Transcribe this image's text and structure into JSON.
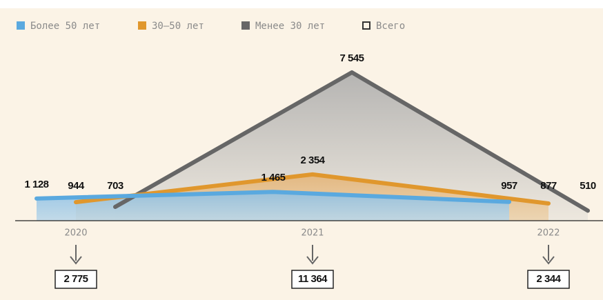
{
  "chart_data": {
    "type": "area",
    "categories": [
      "2020",
      "2021",
      "2022"
    ],
    "ylim": [
      0,
      8000
    ],
    "series": [
      {
        "name": "Более 50 лет",
        "color": "#5aa9df",
        "values": [
          1128,
          1465,
          957
        ],
        "value_labels": [
          "1 128",
          "1 465",
          "957"
        ]
      },
      {
        "name": "30–50 лет",
        "color": "#e0972d",
        "values": [
          944,
          2354,
          877
        ],
        "value_labels": [
          "944",
          "2 354",
          "877"
        ]
      },
      {
        "name": "Менее 30 лет",
        "color": "#666666",
        "values": [
          703,
          7545,
          510
        ],
        "value_labels": [
          "703",
          "7 545",
          "510"
        ]
      }
    ],
    "totals": {
      "name": "Всего",
      "values": [
        2775,
        11364,
        2344
      ],
      "value_labels": [
        "2 775",
        "11 364",
        "2 344"
      ]
    }
  }
}
